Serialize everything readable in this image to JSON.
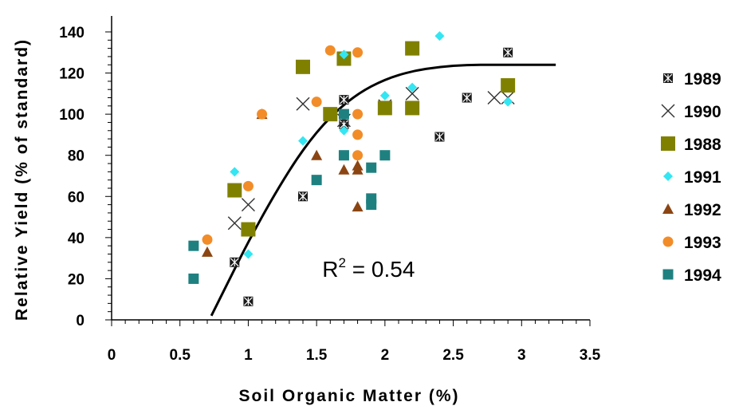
{
  "chart_data": {
    "type": "scatter",
    "xlabel": "Soil Organic Matter (%)",
    "ylabel": "Relative Yield (% of standard)",
    "xlim": [
      0,
      3.5
    ],
    "ylim": [
      0,
      140
    ],
    "x_ticks": [
      "0",
      "0.5",
      "1",
      "1.5",
      "2",
      "2.5",
      "3",
      "3.5"
    ],
    "y_ticks": [
      "0",
      "20",
      "40",
      "60",
      "80",
      "100",
      "120",
      "140"
    ],
    "grid": false,
    "legend_position": "right",
    "annotation": {
      "prefix": "R",
      "sup": "2",
      "suffix": " = 0.54",
      "x": 1.95,
      "y": 24
    },
    "series": [
      {
        "name": "1989",
        "marker": "xbox",
        "color": "#1a1a1a",
        "points": [
          [
            0.9,
            28
          ],
          [
            1.0,
            9
          ],
          [
            1.4,
            60
          ],
          [
            1.7,
            107
          ],
          [
            1.7,
            95
          ],
          [
            2.4,
            89
          ],
          [
            2.6,
            108
          ],
          [
            2.9,
            130
          ]
        ]
      },
      {
        "name": "1990",
        "marker": "cross",
        "color": "#333333",
        "points": [
          [
            0.9,
            47
          ],
          [
            1.0,
            56
          ],
          [
            1.4,
            105
          ],
          [
            1.7,
            97
          ],
          [
            2.0,
            104
          ],
          [
            2.2,
            110
          ],
          [
            2.8,
            108
          ],
          [
            2.9,
            108
          ]
        ]
      },
      {
        "name": "1988",
        "marker": "square",
        "color": "#808000",
        "points": [
          [
            0.9,
            63
          ],
          [
            1.0,
            44
          ],
          [
            1.4,
            123
          ],
          [
            1.6,
            100
          ],
          [
            1.7,
            127
          ],
          [
            2.0,
            103
          ],
          [
            2.2,
            132
          ],
          [
            2.2,
            103
          ],
          [
            2.9,
            114
          ]
        ]
      },
      {
        "name": "1991",
        "marker": "diamond",
        "color": "#33e6f2",
        "points": [
          [
            0.9,
            72
          ],
          [
            1.0,
            32
          ],
          [
            1.4,
            87
          ],
          [
            1.7,
            129
          ],
          [
            1.7,
            92
          ],
          [
            2.0,
            109
          ],
          [
            2.2,
            113
          ],
          [
            2.4,
            138
          ],
          [
            2.9,
            106
          ]
        ]
      },
      {
        "name": "1992",
        "marker": "triangle",
        "color": "#8b4513",
        "points": [
          [
            0.7,
            33
          ],
          [
            1.1,
            100
          ],
          [
            1.5,
            80
          ],
          [
            1.7,
            73
          ],
          [
            1.8,
            75
          ],
          [
            1.8,
            55
          ],
          [
            1.8,
            73
          ]
        ]
      },
      {
        "name": "1993",
        "marker": "circle",
        "color": "#f28c28",
        "points": [
          [
            0.7,
            39
          ],
          [
            1.0,
            65
          ],
          [
            1.1,
            100
          ],
          [
            1.5,
            106
          ],
          [
            1.6,
            131
          ],
          [
            1.8,
            130
          ],
          [
            1.8,
            100
          ],
          [
            1.8,
            90
          ],
          [
            1.8,
            80
          ]
        ]
      },
      {
        "name": "1994",
        "marker": "smallsquare",
        "color": "#1f8080",
        "points": [
          [
            0.6,
            36
          ],
          [
            0.6,
            20
          ],
          [
            1.5,
            68
          ],
          [
            1.7,
            100
          ],
          [
            1.7,
            80
          ],
          [
            1.9,
            74
          ],
          [
            1.9,
            59
          ],
          [
            1.9,
            56
          ],
          [
            2.0,
            80
          ]
        ]
      }
    ],
    "fit_curve": [
      [
        0.73,
        2
      ],
      [
        0.85,
        18
      ],
      [
        1.0,
        38
      ],
      [
        1.2,
        62
      ],
      [
        1.4,
        83
      ],
      [
        1.6,
        99
      ],
      [
        1.8,
        110
      ],
      [
        2.0,
        117
      ],
      [
        2.2,
        121
      ],
      [
        2.4,
        123
      ],
      [
        2.6,
        124
      ],
      [
        2.8,
        124
      ],
      [
        3.0,
        124
      ],
      [
        3.25,
        124
      ]
    ]
  }
}
